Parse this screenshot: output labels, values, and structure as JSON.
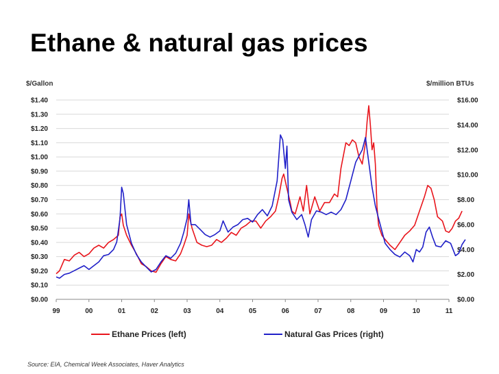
{
  "title": "Ethane & natural gas prices",
  "source": "Source: EIA,  Chemical Week Associates, Haver Analytics",
  "colors": {
    "ethane": "#e8141b",
    "gas": "#1f1fc8",
    "grid": "#d8d8d8"
  },
  "chart_data": {
    "type": "line",
    "title": "Ethane & natural gas prices",
    "left_axis": {
      "label": "$/Gallon",
      "range": [
        0,
        1.4
      ],
      "ticks": [
        "$0.00",
        "$0.10",
        "$0.20",
        "$0.30",
        "$0.40",
        "$0.50",
        "$0.60",
        "$0.70",
        "$0.80",
        "$0.90",
        "$1.00",
        "$1.10",
        "$1.20",
        "$1.30",
        "$1.40"
      ]
    },
    "right_axis": {
      "label": "$/million BTUs",
      "range": [
        0,
        16
      ],
      "ticks": [
        "$0.00",
        "$2.00",
        "$4.00",
        "$6.00",
        "$8.00",
        "$10.00",
        "$12.00",
        "$14.00",
        "$16.00"
      ]
    },
    "x_range": [
      0,
      12
    ],
    "x_ticks": [
      "99",
      "00",
      "01",
      "02",
      "03",
      "04",
      "05",
      "06",
      "07",
      "08",
      "09",
      "10",
      "11"
    ],
    "grid": true,
    "legend_position": "bottom",
    "series": [
      {
        "name": "Ethane Prices (left)",
        "axis": "left",
        "points": [
          [
            0.0,
            0.18
          ],
          [
            0.1,
            0.2
          ],
          [
            0.25,
            0.28
          ],
          [
            0.4,
            0.27
          ],
          [
            0.55,
            0.31
          ],
          [
            0.7,
            0.33
          ],
          [
            0.85,
            0.3
          ],
          [
            1.0,
            0.32
          ],
          [
            1.15,
            0.36
          ],
          [
            1.3,
            0.38
          ],
          [
            1.45,
            0.36
          ],
          [
            1.6,
            0.4
          ],
          [
            1.75,
            0.42
          ],
          [
            1.9,
            0.45
          ],
          [
            1.95,
            0.58
          ],
          [
            2.0,
            0.6
          ],
          [
            2.05,
            0.52
          ],
          [
            2.15,
            0.45
          ],
          [
            2.3,
            0.38
          ],
          [
            2.45,
            0.32
          ],
          [
            2.6,
            0.25
          ],
          [
            2.75,
            0.23
          ],
          [
            2.9,
            0.2
          ],
          [
            3.05,
            0.19
          ],
          [
            3.2,
            0.25
          ],
          [
            3.35,
            0.3
          ],
          [
            3.5,
            0.28
          ],
          [
            3.65,
            0.27
          ],
          [
            3.8,
            0.32
          ],
          [
            3.9,
            0.38
          ],
          [
            4.0,
            0.45
          ],
          [
            4.05,
            0.6
          ],
          [
            4.15,
            0.5
          ],
          [
            4.3,
            0.4
          ],
          [
            4.45,
            0.38
          ],
          [
            4.6,
            0.37
          ],
          [
            4.75,
            0.38
          ],
          [
            4.9,
            0.42
          ],
          [
            5.05,
            0.4
          ],
          [
            5.2,
            0.43
          ],
          [
            5.35,
            0.47
          ],
          [
            5.5,
            0.45
          ],
          [
            5.65,
            0.5
          ],
          [
            5.8,
            0.52
          ],
          [
            5.95,
            0.55
          ],
          [
            6.1,
            0.55
          ],
          [
            6.25,
            0.5
          ],
          [
            6.4,
            0.55
          ],
          [
            6.55,
            0.58
          ],
          [
            6.7,
            0.62
          ],
          [
            6.8,
            0.72
          ],
          [
            6.9,
            0.85
          ],
          [
            6.95,
            0.88
          ],
          [
            7.05,
            0.78
          ],
          [
            7.15,
            0.68
          ],
          [
            7.2,
            0.62
          ],
          [
            7.3,
            0.6
          ],
          [
            7.45,
            0.72
          ],
          [
            7.55,
            0.62
          ],
          [
            7.65,
            0.8
          ],
          [
            7.75,
            0.6
          ],
          [
            7.9,
            0.72
          ],
          [
            8.05,
            0.62
          ],
          [
            8.2,
            0.68
          ],
          [
            8.35,
            0.68
          ],
          [
            8.5,
            0.74
          ],
          [
            8.6,
            0.72
          ],
          [
            8.7,
            0.92
          ],
          [
            8.85,
            1.1
          ],
          [
            8.95,
            1.08
          ],
          [
            9.05,
            1.12
          ],
          [
            9.15,
            1.1
          ],
          [
            9.25,
            1.0
          ],
          [
            9.35,
            0.95
          ],
          [
            9.45,
            1.1
          ],
          [
            9.5,
            1.25
          ],
          [
            9.55,
            1.36
          ],
          [
            9.6,
            1.22
          ],
          [
            9.65,
            1.05
          ],
          [
            9.7,
            1.1
          ],
          [
            9.75,
            0.95
          ],
          [
            9.8,
            0.65
          ],
          [
            9.85,
            0.52
          ],
          [
            9.95,
            0.45
          ],
          [
            10.05,
            0.42
          ],
          [
            10.2,
            0.38
          ],
          [
            10.35,
            0.35
          ],
          [
            10.5,
            0.4
          ],
          [
            10.65,
            0.45
          ],
          [
            10.8,
            0.48
          ],
          [
            10.95,
            0.52
          ],
          [
            11.1,
            0.62
          ],
          [
            11.25,
            0.72
          ],
          [
            11.35,
            0.8
          ],
          [
            11.45,
            0.78
          ],
          [
            11.55,
            0.7
          ],
          [
            11.65,
            0.58
          ],
          [
            11.8,
            0.55
          ],
          [
            11.9,
            0.48
          ],
          [
            12.0,
            0.47
          ],
          [
            12.1,
            0.5
          ],
          [
            12.2,
            0.55
          ],
          [
            12.3,
            0.57
          ],
          [
            12.4,
            0.62
          ]
        ]
      },
      {
        "name": "Natural Gas Prices (right)",
        "axis": "right",
        "points": [
          [
            0.0,
            1.8
          ],
          [
            0.1,
            1.7
          ],
          [
            0.25,
            2.0
          ],
          [
            0.4,
            2.1
          ],
          [
            0.55,
            2.3
          ],
          [
            0.7,
            2.5
          ],
          [
            0.85,
            2.7
          ],
          [
            1.0,
            2.4
          ],
          [
            1.15,
            2.7
          ],
          [
            1.3,
            3.0
          ],
          [
            1.45,
            3.5
          ],
          [
            1.6,
            3.6
          ],
          [
            1.75,
            4.0
          ],
          [
            1.85,
            4.6
          ],
          [
            1.95,
            6.5
          ],
          [
            2.0,
            9.0
          ],
          [
            2.05,
            8.5
          ],
          [
            2.15,
            6.0
          ],
          [
            2.3,
            4.5
          ],
          [
            2.45,
            3.6
          ],
          [
            2.6,
            3.0
          ],
          [
            2.75,
            2.6
          ],
          [
            2.9,
            2.2
          ],
          [
            3.05,
            2.4
          ],
          [
            3.2,
            3.0
          ],
          [
            3.35,
            3.5
          ],
          [
            3.5,
            3.3
          ],
          [
            3.65,
            3.7
          ],
          [
            3.8,
            4.5
          ],
          [
            3.9,
            5.4
          ],
          [
            4.0,
            6.5
          ],
          [
            4.05,
            8.0
          ],
          [
            4.12,
            6.0
          ],
          [
            4.25,
            6.0
          ],
          [
            4.4,
            5.6
          ],
          [
            4.55,
            5.2
          ],
          [
            4.7,
            5.0
          ],
          [
            4.85,
            5.2
          ],
          [
            5.0,
            5.5
          ],
          [
            5.1,
            6.3
          ],
          [
            5.25,
            5.4
          ],
          [
            5.4,
            5.8
          ],
          [
            5.55,
            6.0
          ],
          [
            5.7,
            6.4
          ],
          [
            5.85,
            6.5
          ],
          [
            6.0,
            6.2
          ],
          [
            6.15,
            6.8
          ],
          [
            6.3,
            7.2
          ],
          [
            6.45,
            6.7
          ],
          [
            6.6,
            7.5
          ],
          [
            6.75,
            9.5
          ],
          [
            6.85,
            13.2
          ],
          [
            6.92,
            12.8
          ],
          [
            7.0,
            10.5
          ],
          [
            7.05,
            12.3
          ],
          [
            7.1,
            8.0
          ],
          [
            7.2,
            7.0
          ],
          [
            7.35,
            6.4
          ],
          [
            7.5,
            6.8
          ],
          [
            7.6,
            6.0
          ],
          [
            7.7,
            5.0
          ],
          [
            7.8,
            6.4
          ],
          [
            7.95,
            7.1
          ],
          [
            8.1,
            7.0
          ],
          [
            8.25,
            6.8
          ],
          [
            8.4,
            7.0
          ],
          [
            8.55,
            6.8
          ],
          [
            8.7,
            7.2
          ],
          [
            8.85,
            8.0
          ],
          [
            9.0,
            9.5
          ],
          [
            9.15,
            11.0
          ],
          [
            9.25,
            11.5
          ],
          [
            9.35,
            12.0
          ],
          [
            9.45,
            13.0
          ],
          [
            9.55,
            11.0
          ],
          [
            9.65,
            9.0
          ],
          [
            9.75,
            7.5
          ],
          [
            9.85,
            6.5
          ],
          [
            9.95,
            5.5
          ],
          [
            10.05,
            4.5
          ],
          [
            10.2,
            4.0
          ],
          [
            10.35,
            3.6
          ],
          [
            10.5,
            3.4
          ],
          [
            10.65,
            3.8
          ],
          [
            10.8,
            3.5
          ],
          [
            10.9,
            3.0
          ],
          [
            11.0,
            4.0
          ],
          [
            11.1,
            3.8
          ],
          [
            11.2,
            4.2
          ],
          [
            11.3,
            5.4
          ],
          [
            11.4,
            5.8
          ],
          [
            11.5,
            5.0
          ],
          [
            11.6,
            4.3
          ],
          [
            11.75,
            4.2
          ],
          [
            11.9,
            4.7
          ],
          [
            12.05,
            4.5
          ],
          [
            12.2,
            3.5
          ],
          [
            12.3,
            3.7
          ],
          [
            12.4,
            4.4
          ],
          [
            12.5,
            4.8
          ]
        ]
      }
    ]
  }
}
